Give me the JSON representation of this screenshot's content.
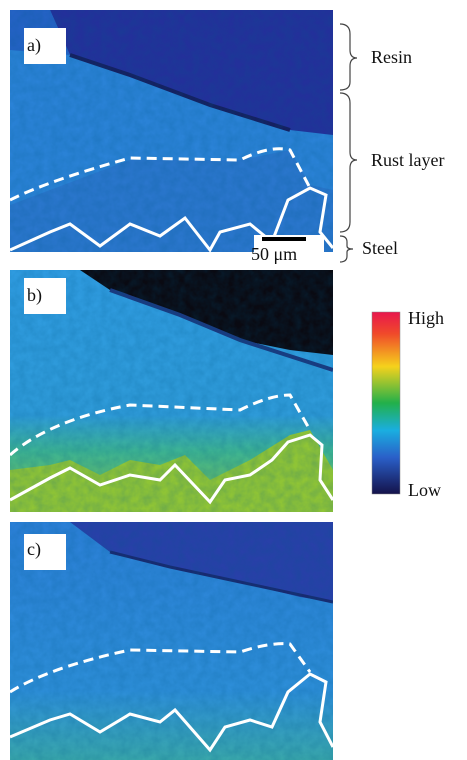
{
  "panels": [
    {
      "label": "a)"
    },
    {
      "label": "b)"
    },
    {
      "label": "c)"
    }
  ],
  "annotations": {
    "resin": "Resin",
    "rust_layer": "Rust layer",
    "steel": "Steel"
  },
  "scale_bar": "50 μm",
  "colorbar": {
    "high": "High",
    "low": "Low"
  }
}
